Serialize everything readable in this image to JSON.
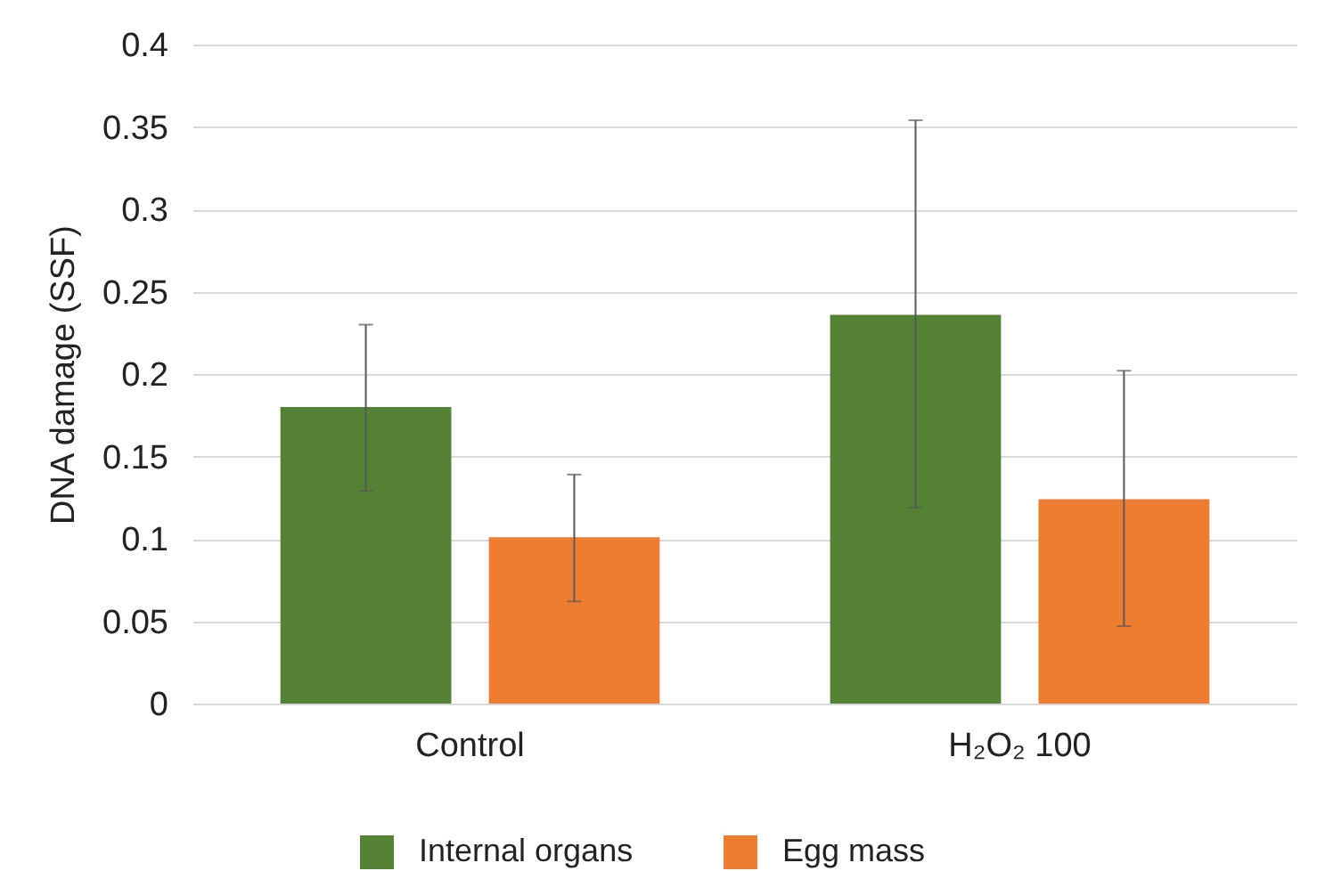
{
  "chart_data": {
    "type": "bar",
    "ylabel": "DNA damage (SSF)",
    "categories": [
      "Control",
      "H₂O₂ 100"
    ],
    "series": [
      {
        "name": "Internal organs",
        "color": "#548235",
        "values": [
          0.18,
          0.236
        ],
        "errors": [
          [
            0.129,
            0.23
          ],
          [
            0.119,
            0.354
          ]
        ]
      },
      {
        "name": "Egg mass",
        "color": "#ed7d31",
        "values": [
          0.101,
          0.124
        ],
        "errors": [
          [
            0.062,
            0.139
          ],
          [
            0.047,
            0.202
          ]
        ]
      }
    ],
    "ylim": [
      0,
      0.4
    ],
    "yticks": [
      0,
      0.05,
      0.1,
      0.15,
      0.2,
      0.25,
      0.3,
      0.35,
      0.4
    ],
    "grid": "y",
    "legend": "bottom"
  }
}
